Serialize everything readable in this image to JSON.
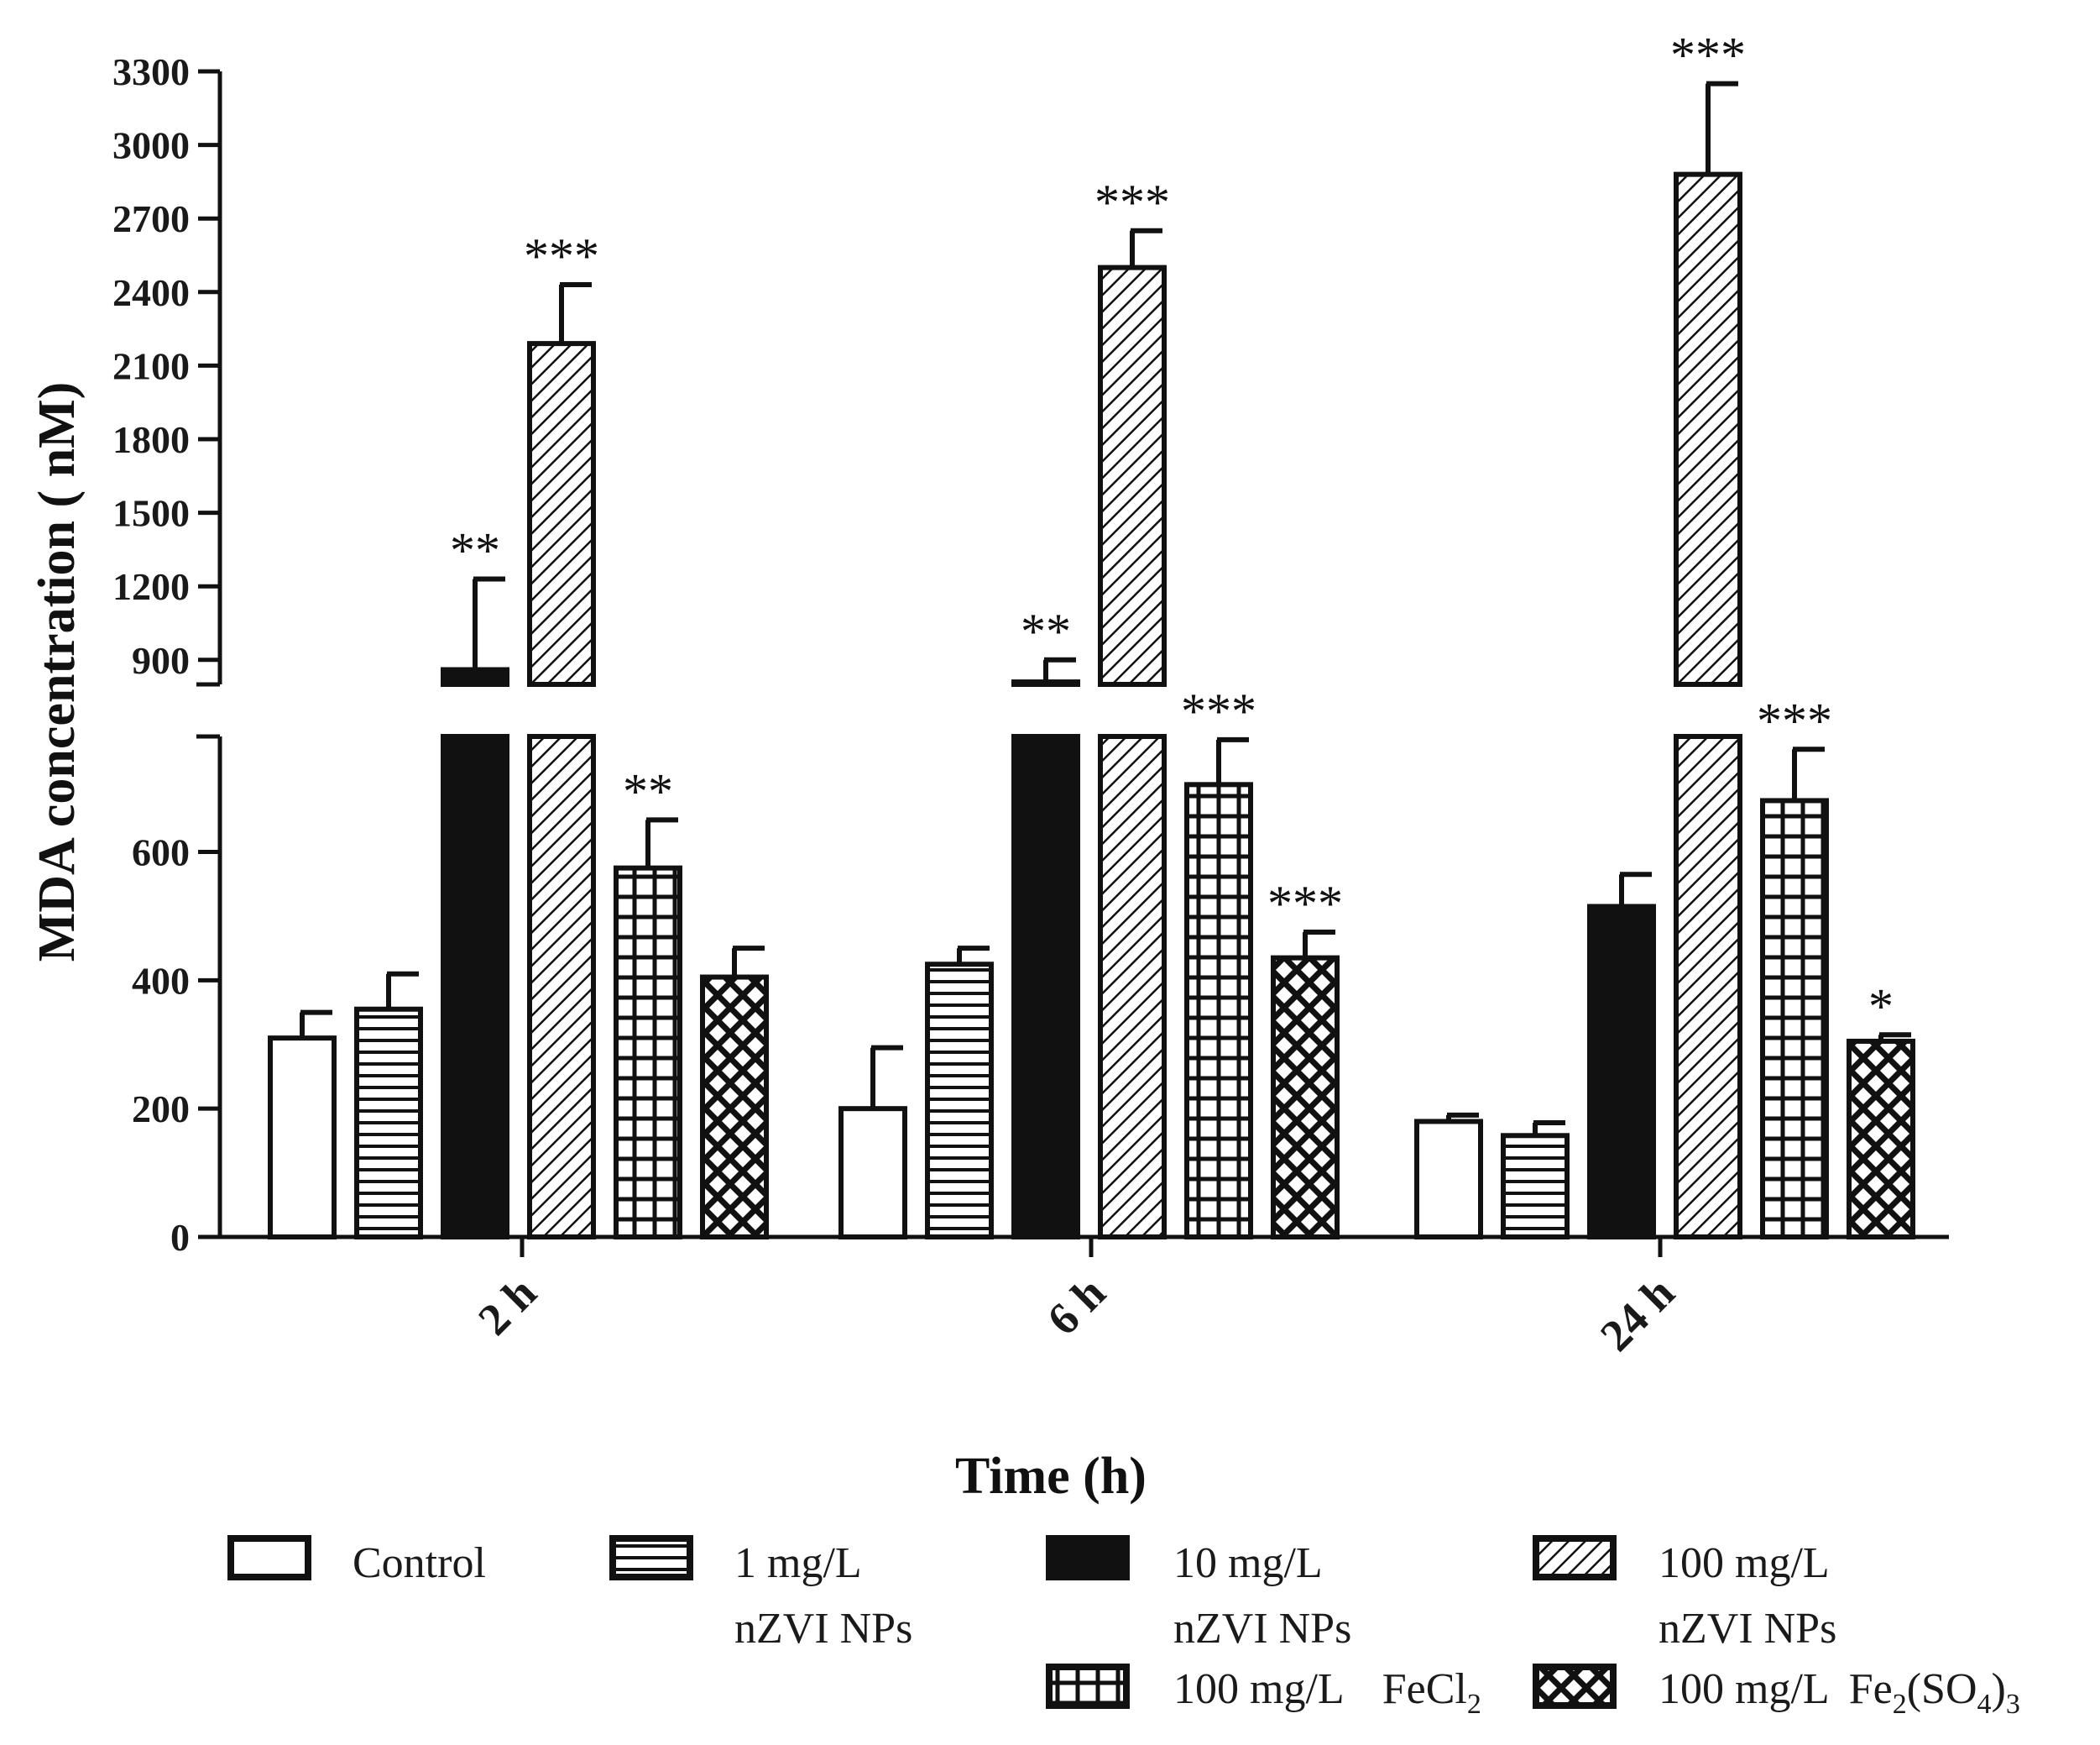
{
  "chart_data": {
    "type": "bar",
    "title": "",
    "xlabel": "Time (h)",
    "ylabel": "MDA concentration ( nM)",
    "categories": [
      "2 h",
      "6 h",
      "24 h"
    ],
    "y_axis_break": {
      "lower_segment": [
        0,
        780
      ],
      "upper_segment": [
        800,
        3300
      ]
    },
    "yticks_lower": [
      "0",
      "200",
      "400",
      "600"
    ],
    "yticks_upper": [
      "900",
      "1200",
      "1500",
      "1800",
      "2100",
      "2400",
      "2700",
      "3000",
      "3300"
    ],
    "series": [
      {
        "name": "Control",
        "pattern": "open",
        "values": [
          310,
          200,
          180
        ],
        "errors": [
          40,
          95,
          10
        ],
        "significance": [
          "",
          "",
          ""
        ]
      },
      {
        "name": "1 mg/L nZVI NPs",
        "pattern": "horizontal",
        "values": [
          355,
          425,
          158
        ],
        "errors": [
          55,
          25,
          20
        ],
        "significance": [
          "",
          "",
          ""
        ]
      },
      {
        "name": "10 mg/L nZVI NPs",
        "pattern": "solid",
        "values": [
          860,
          810,
          515
        ],
        "errors": [
          370,
          90,
          50
        ],
        "significance": [
          "**",
          "**",
          ""
        ]
      },
      {
        "name": "100 mg/L nZVI NPs",
        "pattern": "diagonal",
        "values": [
          2190,
          2500,
          2880
        ],
        "errors": [
          240,
          150,
          370
        ],
        "significance": [
          "***",
          "***",
          "***"
        ]
      },
      {
        "name": "100 mg/L FeCl2",
        "pattern": "grid",
        "values": [
          575,
          705,
          680
        ],
        "errors": [
          75,
          70,
          80
        ],
        "significance": [
          "**",
          "***",
          "***"
        ]
      },
      {
        "name": "100 mg/L Fe2(SO4)3",
        "pattern": "cross",
        "values": [
          405,
          435,
          305
        ],
        "errors": [
          45,
          40,
          10
        ],
        "significance": [
          "",
          "***",
          "*"
        ]
      }
    ],
    "legend": {
      "placement": "bottom",
      "entries": [
        {
          "line1": "Control",
          "line2": ""
        },
        {
          "line1": "1 mg/L",
          "line2": "nZVI NPs"
        },
        {
          "line1": "10 mg/L",
          "line2": "nZVI NPs"
        },
        {
          "line1": "100 mg/L",
          "line2": "nZVI NPs"
        },
        {
          "line1": "100 mg/L",
          "chem": "FeCl",
          "sub1": "2"
        },
        {
          "line1": "100 mg/L",
          "chem": "Fe",
          "sub1": "2",
          "mid": "(SO",
          "sub2": "4",
          "tail": ")",
          "sub3": "3"
        }
      ]
    }
  }
}
